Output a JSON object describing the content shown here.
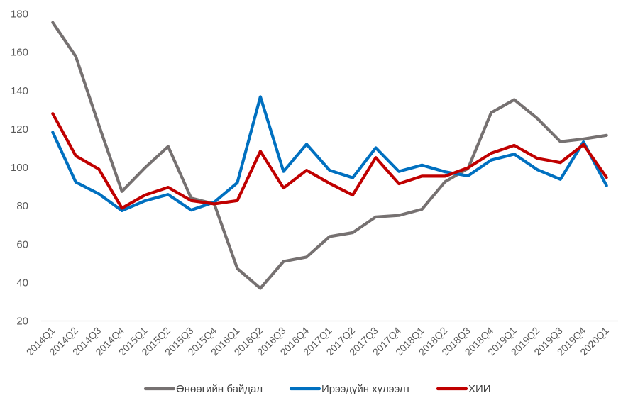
{
  "chart_data": {
    "type": "line",
    "title": "",
    "xlabel": "",
    "ylabel": "",
    "ylim": [
      20,
      180
    ],
    "yticks": [
      20,
      40,
      60,
      80,
      100,
      120,
      140,
      160,
      180
    ],
    "grid": "horizontal baseline only",
    "legend_position": "bottom",
    "categories": [
      "2014Q1",
      "2014Q2",
      "2014Q3",
      "2014Q4",
      "2015Q1",
      "2015Q2",
      "2015Q3",
      "2015Q4",
      "2016Q1",
      "2016Q2",
      "2016Q3",
      "2016Q4",
      "2017Q1",
      "2017Q2",
      "2017Q3",
      "2017Q4",
      "2018Q1",
      "2018Q2",
      "2018Q3",
      "2018Q4",
      "2019Q1",
      "2019Q2",
      "2019Q3",
      "2019Q4",
      "2020Q1"
    ],
    "series": [
      {
        "name": "Өнөөгийн байдал",
        "color": "#767171",
        "values": [
          175.5,
          157.8,
          122.0,
          87.5,
          99.8,
          110.9,
          84.0,
          81.0,
          47.3,
          37.0,
          51.0,
          53.3,
          64.0,
          66.0,
          74.2,
          75.0,
          78.2,
          92.5,
          99.5,
          128.5,
          135.3,
          125.5,
          113.4,
          114.8,
          116.7
        ]
      },
      {
        "name": "Ирээдүйн хүлээлт",
        "color": "#0070C0",
        "values": [
          118.3,
          92.3,
          86.2,
          77.5,
          82.6,
          85.9,
          77.8,
          81.9,
          92.0,
          136.8,
          97.9,
          112.1,
          98.5,
          94.6,
          110.2,
          97.9,
          101.2,
          97.7,
          95.6,
          103.8,
          106.9,
          98.8,
          93.8,
          113.3,
          90.5
        ]
      },
      {
        "name": "ХИИ",
        "color": "#C00000",
        "values": [
          128.0,
          106.0,
          99.1,
          78.8,
          85.6,
          89.6,
          82.7,
          81.0,
          82.7,
          108.4,
          89.3,
          98.5,
          91.7,
          85.6,
          105.1,
          91.5,
          95.4,
          95.4,
          99.8,
          107.4,
          111.5,
          104.7,
          102.5,
          111.9,
          94.8
        ]
      }
    ]
  }
}
